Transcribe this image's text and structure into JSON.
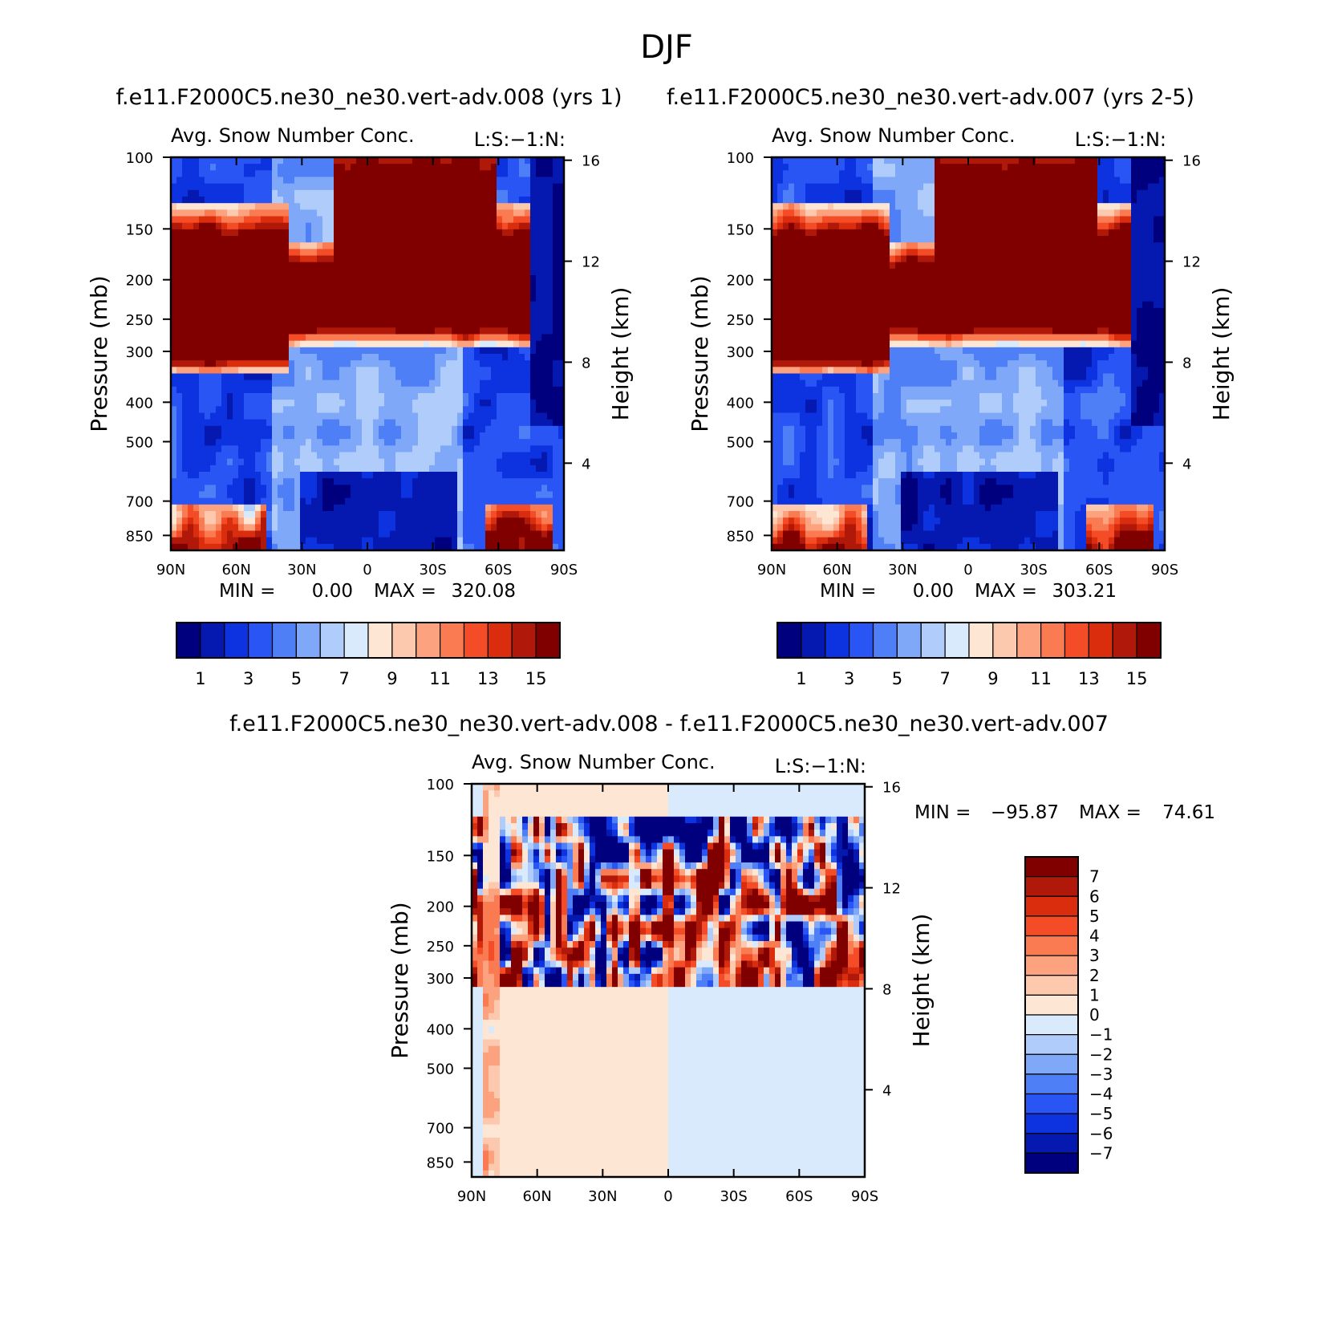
{
  "title": "DJF",
  "colors": {
    "abs_scale": [
      "#00007f",
      "#0519b0",
      "#0d33e0",
      "#2a55f5",
      "#4f7ff7",
      "#80a8f8",
      "#b0ccfb",
      "#d8eafb",
      "#fde6d4",
      "#fcc8ae",
      "#fca27e",
      "#fa7b52",
      "#f44c27",
      "#d92d0d",
      "#b0190a",
      "#800000"
    ],
    "diff_scale": [
      "#00007f",
      "#0519b0",
      "#0d33e0",
      "#2a55f5",
      "#4f7ff7",
      "#80a8f8",
      "#b0ccfb",
      "#d8eafb",
      "#fde6d4",
      "#fcc8ae",
      "#fca27e",
      "#fa7b52",
      "#f44c27",
      "#d92d0d",
      "#b0190a",
      "#800000"
    ]
  },
  "chart_data": [
    {
      "id": "panel1",
      "type": "heatmap",
      "title": "f.e11.F2000C5.ne30_ne30.vert-adv.008 (yrs 1)",
      "subtitle": "Avg. Snow Number Conc.",
      "right_string": "L:S:-1:N:",
      "xlabel": "",
      "ylabel": "Pressure (mb)",
      "y2label": "Height (km)",
      "xticks": [
        "90N",
        "60N",
        "30N",
        "0",
        "30S",
        "60S",
        "90S"
      ],
      "xlim": [
        90,
        -90
      ],
      "yticks": [
        "100",
        "150",
        "200",
        "250",
        "300",
        "400",
        "500",
        "700",
        "850"
      ],
      "ylim": [
        100,
        925
      ],
      "y2ticks": [
        "16",
        "12",
        "8",
        "4"
      ],
      "stats": {
        "min_label": "MIN =",
        "min": "0.00",
        "max_label": "MAX =",
        "max": "320.08"
      },
      "levels": [
        1,
        2,
        3,
        4,
        5,
        6,
        7,
        8,
        9,
        10,
        11,
        12,
        13,
        14,
        15
      ],
      "colorbar_labels": [
        "1",
        "3",
        "5",
        "7",
        "9",
        "11",
        "13",
        "15"
      ]
    },
    {
      "id": "panel2",
      "type": "heatmap",
      "title": "f.e11.F2000C5.ne30_ne30.vert-adv.007 (yrs 2-5)",
      "subtitle": "Avg. Snow Number Conc.",
      "right_string": "L:S:-1:N:",
      "xlabel": "",
      "ylabel": "Pressure (mb)",
      "y2label": "Height (km)",
      "xticks": [
        "90N",
        "60N",
        "30N",
        "0",
        "30S",
        "60S",
        "90S"
      ],
      "xlim": [
        90,
        -90
      ],
      "yticks": [
        "100",
        "150",
        "200",
        "250",
        "300",
        "400",
        "500",
        "700",
        "850"
      ],
      "ylim": [
        100,
        925
      ],
      "y2ticks": [
        "16",
        "12",
        "8",
        "4"
      ],
      "stats": {
        "min_label": "MIN =",
        "min": "0.00",
        "max_label": "MAX =",
        "max": "303.21"
      },
      "levels": [
        1,
        2,
        3,
        4,
        5,
        6,
        7,
        8,
        9,
        10,
        11,
        12,
        13,
        14,
        15
      ],
      "colorbar_labels": [
        "1",
        "3",
        "5",
        "7",
        "9",
        "11",
        "13",
        "15"
      ]
    },
    {
      "id": "panel3",
      "type": "heatmap",
      "title": "f.e11.F2000C5.ne30_ne30.vert-adv.008 - f.e11.F2000C5.ne30_ne30.vert-adv.007",
      "subtitle": "Avg. Snow Number Conc.",
      "right_string": "L:S:-1:N:",
      "xlabel": "",
      "ylabel": "Pressure (mb)",
      "y2label": "Height (km)",
      "xticks": [
        "90N",
        "60N",
        "30N",
        "0",
        "30S",
        "60S",
        "90S"
      ],
      "xlim": [
        90,
        -90
      ],
      "yticks": [
        "100",
        "150",
        "200",
        "250",
        "300",
        "400",
        "500",
        "700",
        "850"
      ],
      "ylim": [
        100,
        925
      ],
      "y2ticks": [
        "16",
        "12",
        "8",
        "4"
      ],
      "stats": {
        "min_label": "MIN =",
        "min": "-95.87",
        "max_label": "MAX =",
        "max": "74.61"
      },
      "levels": [
        -7,
        -6,
        -5,
        -4,
        -3,
        -2,
        -1,
        0,
        1,
        2,
        3,
        4,
        5,
        6,
        7
      ],
      "colorbar_labels": [
        "7",
        "6",
        "5",
        "4",
        "3",
        "2",
        "1",
        "0",
        "-1",
        "-2",
        "-3",
        "-4",
        "-5",
        "-6",
        "-7"
      ]
    }
  ]
}
